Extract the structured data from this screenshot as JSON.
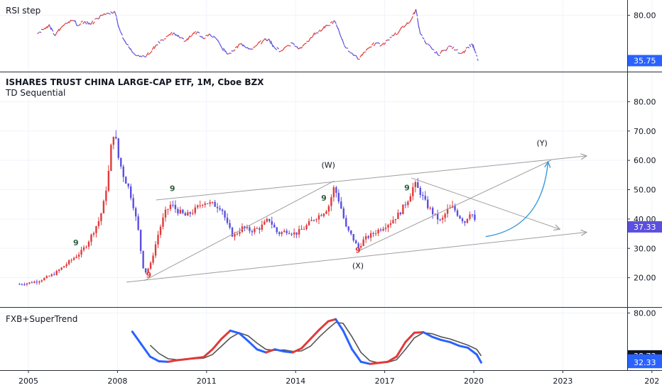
{
  "chart_data": {
    "type": "candlestick",
    "title": "ISHARES TRUST CHINA LARGE-CAP ETF, 1M, Cboe BZX",
    "subtitle": "TD Sequential",
    "x_ticks": [
      "2005",
      "2008",
      "2011",
      "2014",
      "2017",
      "2020",
      "2023",
      "202"
    ],
    "colors": {
      "up": "#e03a3a",
      "down": "#5b4fe0",
      "blue_badge": "#2962ff",
      "dark_badge": "#131722",
      "td_buy": "#e03a3a",
      "td_sell": "#2e5e3e",
      "trendline": "#9e9e9e",
      "projection": "#3a9ad9"
    },
    "main": {
      "y_ticks": [
        "80.00",
        "70.00",
        "60.00",
        "50.00",
        "40.00",
        "30.00",
        "20.00"
      ],
      "ylim": [
        10,
        90
      ],
      "last_price": "37.33",
      "price_path": [
        [
          2004.7,
          17.8
        ],
        [
          2005.0,
          18.2
        ],
        [
          2005.3,
          18.8
        ],
        [
          2005.6,
          20.0
        ],
        [
          2005.9,
          21.5
        ],
        [
          2006.2,
          24.0
        ],
        [
          2006.5,
          26.5
        ],
        [
          2006.8,
          29.0
        ],
        [
          2007.0,
          32.0
        ],
        [
          2007.2,
          36.0
        ],
        [
          2007.4,
          40.0
        ],
        [
          2007.55,
          46.0
        ],
        [
          2007.7,
          56.0
        ],
        [
          2007.8,
          66.0
        ],
        [
          2007.9,
          71.0
        ],
        [
          2008.0,
          62.0
        ],
        [
          2008.2,
          55.0
        ],
        [
          2008.4,
          50.0
        ],
        [
          2008.55,
          44.0
        ],
        [
          2008.7,
          36.0
        ],
        [
          2008.85,
          24.0
        ],
        [
          2008.95,
          22.0
        ],
        [
          2009.1,
          24.0
        ],
        [
          2009.25,
          30.0
        ],
        [
          2009.4,
          36.0
        ],
        [
          2009.6,
          42.0
        ],
        [
          2009.8,
          45.0
        ],
        [
          2010.0,
          43.0
        ],
        [
          2010.3,
          41.0
        ],
        [
          2010.6,
          43.0
        ],
        [
          2010.9,
          46.0
        ],
        [
          2011.2,
          45.0
        ],
        [
          2011.5,
          44.0
        ],
        [
          2011.7,
          38.0
        ],
        [
          2011.9,
          34.0
        ],
        [
          2012.2,
          37.0
        ],
        [
          2012.5,
          36.0
        ],
        [
          2012.8,
          37.0
        ],
        [
          2013.1,
          40.0
        ],
        [
          2013.4,
          35.0
        ],
        [
          2013.7,
          36.0
        ],
        [
          2014.0,
          35.0
        ],
        [
          2014.3,
          37.0
        ],
        [
          2014.6,
          40.0
        ],
        [
          2014.9,
          42.0
        ],
        [
          2015.1,
          44.0
        ],
        [
          2015.3,
          51.0
        ],
        [
          2015.5,
          45.0
        ],
        [
          2015.7,
          37.0
        ],
        [
          2015.9,
          34.0
        ],
        [
          2016.1,
          30.0
        ],
        [
          2016.3,
          33.0
        ],
        [
          2016.6,
          35.0
        ],
        [
          2016.9,
          37.0
        ],
        [
          2017.2,
          39.0
        ],
        [
          2017.5,
          42.0
        ],
        [
          2017.8,
          47.0
        ],
        [
          2018.0,
          52.0
        ],
        [
          2018.2,
          49.0
        ],
        [
          2018.4,
          45.0
        ],
        [
          2018.7,
          41.0
        ],
        [
          2018.9,
          39.0
        ],
        [
          2019.1,
          43.0
        ],
        [
          2019.3,
          44.0
        ],
        [
          2019.5,
          41.0
        ],
        [
          2019.7,
          39.0
        ],
        [
          2019.9,
          43.0
        ],
        [
          2020.0,
          40.0
        ],
        [
          2020.1,
          37.33
        ]
      ],
      "td_labels": [
        {
          "text": "9",
          "t": 2006.6,
          "y": 31.0,
          "kind": "sell"
        },
        {
          "text": "9",
          "t": 2009.85,
          "y": 49.5,
          "kind": "sell"
        },
        {
          "text": "9",
          "t": 2014.95,
          "y": 46.3,
          "kind": "sell"
        },
        {
          "text": "9",
          "t": 2017.75,
          "y": 49.8,
          "kind": "sell"
        },
        {
          "text": "9",
          "t": 2009.05,
          "y": 20.0,
          "kind": "buy"
        },
        {
          "text": "9",
          "t": 2016.1,
          "y": 28.5,
          "kind": "buy"
        }
      ],
      "annotations": [
        {
          "text": "(W)",
          "t": 2015.1,
          "y": 57.5
        },
        {
          "text": "(X)",
          "t": 2016.1,
          "y": 23.2
        },
        {
          "text": "(Y)",
          "t": 2022.3,
          "y": 65.0
        }
      ],
      "trendlines": [
        {
          "t1": 2008.3,
          "y1": 18.5,
          "t2": 2023.8,
          "y2": 35.5,
          "arrow": true
        },
        {
          "t1": 2009.3,
          "y1": 46.5,
          "t2": 2023.8,
          "y2": 61.5,
          "arrow": true
        },
        {
          "t1": 2008.9,
          "y1": 19.0,
          "t2": 2015.3,
          "y2": 53.0,
          "arrow": false
        },
        {
          "t1": 2016.1,
          "y1": 29.0,
          "t2": 2022.6,
          "y2": 60.0,
          "arrow": false
        },
        {
          "t1": 2017.9,
          "y1": 54.0,
          "t2": 2022.9,
          "y2": 36.5,
          "arrow": true
        }
      ],
      "projection": {
        "t1": 2020.4,
        "y1": 34.0,
        "tc": 2022.3,
        "yc": 37.0,
        "t2": 2022.5,
        "y2": 59.5
      }
    },
    "rsi": {
      "title": "RSI step",
      "y_ticks": [
        "80.00"
      ],
      "ylim": [
        25,
        95
      ],
      "last_value": "35.75",
      "series": [
        [
          2005.3,
          62.0
        ],
        [
          2005.5,
          66.0
        ],
        [
          2005.7,
          71.0
        ],
        [
          2005.9,
          60.0
        ],
        [
          2006.1,
          68.0
        ],
        [
          2006.3,
          72.0
        ],
        [
          2006.5,
          75.0
        ],
        [
          2006.7,
          70.0
        ],
        [
          2006.9,
          74.0
        ],
        [
          2007.1,
          71.0
        ],
        [
          2007.3,
          77.0
        ],
        [
          2007.5,
          80.0
        ],
        [
          2007.7,
          82.0
        ],
        [
          2007.9,
          84.0
        ],
        [
          2008.1,
          64.0
        ],
        [
          2008.3,
          52.0
        ],
        [
          2008.5,
          44.0
        ],
        [
          2008.7,
          41.0
        ],
        [
          2008.9,
          40.0
        ],
        [
          2009.1,
          43.0
        ],
        [
          2009.3,
          51.0
        ],
        [
          2009.5,
          56.0
        ],
        [
          2009.7,
          60.0
        ],
        [
          2009.9,
          63.0
        ],
        [
          2010.1,
          58.0
        ],
        [
          2010.3,
          55.0
        ],
        [
          2010.5,
          60.0
        ],
        [
          2010.7,
          64.0
        ],
        [
          2010.9,
          57.0
        ],
        [
          2011.1,
          62.0
        ],
        [
          2011.3,
          58.0
        ],
        [
          2011.5,
          49.0
        ],
        [
          2011.7,
          42.0
        ],
        [
          2011.9,
          45.0
        ],
        [
          2012.1,
          52.0
        ],
        [
          2012.3,
          49.0
        ],
        [
          2012.5,
          47.0
        ],
        [
          2012.7,
          51.0
        ],
        [
          2012.9,
          55.0
        ],
        [
          2013.1,
          57.0
        ],
        [
          2013.3,
          48.0
        ],
        [
          2013.5,
          45.0
        ],
        [
          2013.7,
          50.0
        ],
        [
          2013.9,
          53.0
        ],
        [
          2014.1,
          47.0
        ],
        [
          2014.3,
          52.0
        ],
        [
          2014.5,
          58.0
        ],
        [
          2014.7,
          63.0
        ],
        [
          2014.9,
          66.0
        ],
        [
          2015.1,
          70.0
        ],
        [
          2015.3,
          75.0
        ],
        [
          2015.5,
          61.0
        ],
        [
          2015.7,
          48.0
        ],
        [
          2015.9,
          43.0
        ],
        [
          2016.1,
          37.0
        ],
        [
          2016.3,
          44.0
        ],
        [
          2016.5,
          49.0
        ],
        [
          2016.7,
          53.0
        ],
        [
          2016.9,
          51.0
        ],
        [
          2017.1,
          56.0
        ],
        [
          2017.3,
          60.0
        ],
        [
          2017.5,
          65.0
        ],
        [
          2017.7,
          70.0
        ],
        [
          2017.9,
          76.0
        ],
        [
          2018.05,
          86.0
        ],
        [
          2018.2,
          62.0
        ],
        [
          2018.4,
          52.0
        ],
        [
          2018.6,
          47.0
        ],
        [
          2018.8,
          41.0
        ],
        [
          2019.0,
          46.0
        ],
        [
          2019.2,
          50.0
        ],
        [
          2019.4,
          46.0
        ],
        [
          2019.6,
          43.0
        ],
        [
          2019.8,
          49.0
        ],
        [
          2019.95,
          52.0
        ],
        [
          2020.05,
          44.0
        ],
        [
          2020.15,
          35.75
        ]
      ]
    },
    "fxb": {
      "title": "FXB+SuperTrend",
      "y_ticks": [
        "80.00"
      ],
      "ylim": [
        25,
        85
      ],
      "values": [
        "38.73",
        "34.76",
        "32.33"
      ],
      "fast": [
        [
          2008.5,
          62.0
        ],
        [
          2008.8,
          50.0
        ],
        [
          2009.1,
          38.0
        ],
        [
          2009.4,
          33.5
        ],
        [
          2009.7,
          33.0
        ],
        [
          2010.0,
          34.5
        ],
        [
          2010.3,
          35.5
        ],
        [
          2010.6,
          36.5
        ],
        [
          2010.9,
          37.5
        ],
        [
          2011.2,
          45.0
        ],
        [
          2011.5,
          55.0
        ],
        [
          2011.8,
          63.0
        ],
        [
          2012.1,
          60.5
        ],
        [
          2012.4,
          53.0
        ],
        [
          2012.7,
          45.0
        ],
        [
          2013.0,
          42.0
        ],
        [
          2013.3,
          45.0
        ],
        [
          2013.6,
          43.0
        ],
        [
          2013.9,
          42.0
        ],
        [
          2014.2,
          46.0
        ],
        [
          2014.5,
          55.0
        ],
        [
          2014.8,
          64.0
        ],
        [
          2015.1,
          72.0
        ],
        [
          2015.35,
          74.0
        ],
        [
          2015.6,
          63.0
        ],
        [
          2015.9,
          45.0
        ],
        [
          2016.2,
          33.0
        ],
        [
          2016.5,
          31.0
        ],
        [
          2016.8,
          32.0
        ],
        [
          2017.1,
          33.0
        ],
        [
          2017.4,
          38.0
        ],
        [
          2017.7,
          52.0
        ],
        [
          2018.0,
          61.0
        ],
        [
          2018.3,
          61.5
        ],
        [
          2018.6,
          57.0
        ],
        [
          2018.9,
          54.0
        ],
        [
          2019.2,
          52.0
        ],
        [
          2019.5,
          48.5
        ],
        [
          2019.8,
          46.5
        ],
        [
          2020.1,
          40.0
        ],
        [
          2020.25,
          32.33
        ]
      ],
      "slow": [
        [
          2009.1,
          49.0
        ],
        [
          2009.4,
          41.0
        ],
        [
          2009.7,
          36.0
        ],
        [
          2010.0,
          35.0
        ],
        [
          2010.3,
          35.5
        ],
        [
          2010.6,
          36.0
        ],
        [
          2010.9,
          36.5
        ],
        [
          2011.2,
          40.0
        ],
        [
          2011.5,
          48.0
        ],
        [
          2011.8,
          56.0
        ],
        [
          2012.1,
          61.0
        ],
        [
          2012.4,
          58.0
        ],
        [
          2012.7,
          51.0
        ],
        [
          2013.0,
          45.0
        ],
        [
          2013.3,
          44.0
        ],
        [
          2013.6,
          44.5
        ],
        [
          2013.9,
          43.0
        ],
        [
          2014.2,
          43.5
        ],
        [
          2014.5,
          48.0
        ],
        [
          2014.8,
          57.0
        ],
        [
          2015.1,
          65.0
        ],
        [
          2015.35,
          71.0
        ],
        [
          2015.6,
          70.0
        ],
        [
          2015.9,
          57.0
        ],
        [
          2016.2,
          42.0
        ],
        [
          2016.5,
          34.0
        ],
        [
          2016.8,
          32.0
        ],
        [
          2017.1,
          32.5
        ],
        [
          2017.4,
          35.0
        ],
        [
          2017.7,
          45.0
        ],
        [
          2018.0,
          56.0
        ],
        [
          2018.3,
          61.0
        ],
        [
          2018.6,
          60.0
        ],
        [
          2018.9,
          57.0
        ],
        [
          2019.2,
          55.0
        ],
        [
          2019.5,
          52.0
        ],
        [
          2019.8,
          49.0
        ],
        [
          2020.1,
          45.0
        ],
        [
          2020.25,
          38.73
        ]
      ]
    }
  }
}
